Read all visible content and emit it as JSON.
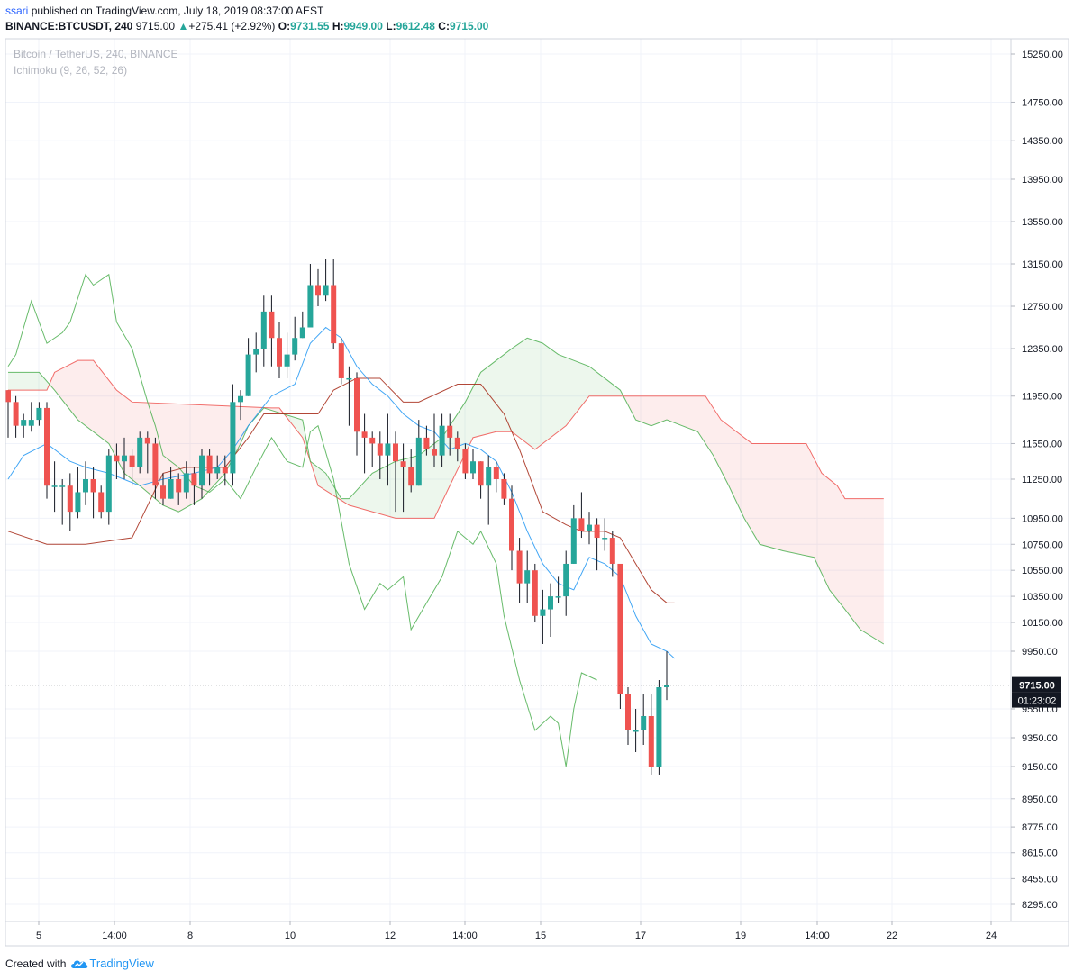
{
  "header": {
    "user": "ssari",
    "published_text": "published on TradingView.com, July 18, 2019 08:37:00 AEST",
    "symbol": "BINANCE:BTCUSDT, 240",
    "last": "9715.00",
    "change": "+275.41 (+2.92%)",
    "o_label": "O:",
    "o_value": "9731.55",
    "h_label": "H:",
    "h_value": "9949.00",
    "l_label": "L:",
    "l_value": "9612.48",
    "c_label": "C:",
    "c_value": "9715.00"
  },
  "legend": {
    "symbol_desc": "Bitcoin / TetherUS, 240, BINANCE",
    "indicator": "Ichimoku (9, 26, 52, 26)"
  },
  "footer": {
    "created_with": "Created with",
    "brand": "TradingView"
  },
  "price_badge": "9715.00",
  "countdown_badge": "01:23:02",
  "colors": {
    "up": "#26a69a",
    "down": "#ef5350",
    "conversion": "#2196f3",
    "base": "#a52714",
    "lagging": "#4caf50",
    "cloud_bull": "#4caf50",
    "cloud_bear": "#ef5350"
  },
  "chart_data": {
    "type": "candlestick",
    "yticks": [
      15250,
      14750,
      14350,
      13950,
      13550,
      13150,
      12750,
      12350,
      11950,
      11550,
      11250,
      10950,
      10750,
      10550,
      10350,
      10150,
      9950,
      9550,
      9350,
      9150,
      8950,
      8775,
      8615,
      8455,
      8295
    ],
    "yticks_hidden_under_badge": [
      9715
    ],
    "xticks": [
      "5",
      "14:00",
      "8",
      "10",
      "12",
      "14:00",
      "15",
      "17",
      "19",
      "14:00",
      "22",
      "24"
    ],
    "last_price": 9715,
    "candles": [
      [
        12000,
        11900,
        12000,
        11600
      ],
      [
        11900,
        11700,
        11950,
        11600
      ],
      [
        11700,
        11750,
        11800,
        11600
      ],
      [
        11700,
        11750,
        11900,
        11650
      ],
      [
        11750,
        11850,
        11900,
        11700
      ],
      [
        11850,
        11200,
        11900,
        11100
      ],
      [
        11200,
        11200,
        11400,
        11000
      ],
      [
        11200,
        11200,
        11250,
        10900
      ],
      [
        11200,
        11000,
        11300,
        10850
      ],
      [
        11000,
        11150,
        11350,
        10950
      ],
      [
        11150,
        11250,
        11400,
        11050
      ],
      [
        11250,
        11150,
        11350,
        10950
      ],
      [
        11150,
        11000,
        11200,
        10950
      ],
      [
        11000,
        11450,
        11500,
        10900
      ],
      [
        11450,
        11400,
        11550,
        11250
      ],
      [
        11400,
        11450,
        11600,
        11250
      ],
      [
        11450,
        11350,
        11500,
        11200
      ],
      [
        11350,
        11600,
        11650,
        11300
      ],
      [
        11600,
        11550,
        11650,
        11300
      ],
      [
        11550,
        11200,
        11600,
        11100
      ],
      [
        11200,
        11100,
        11300,
        11050
      ],
      [
        11100,
        11250,
        11350,
        11100
      ],
      [
        11250,
        11150,
        11300,
        11050
      ],
      [
        11150,
        11300,
        11400,
        11100
      ],
      [
        11300,
        11200,
        11350,
        11050
      ],
      [
        11200,
        11450,
        11500,
        11100
      ],
      [
        11450,
        11300,
        11500,
        11200
      ],
      [
        11300,
        11350,
        11450,
        11250
      ],
      [
        11350,
        11300,
        11450,
        11200
      ],
      [
        11300,
        11900,
        12050,
        11200
      ],
      [
        11900,
        11950,
        12000,
        11750
      ],
      [
        11950,
        12300,
        12450,
        11950
      ],
      [
        12300,
        12350,
        12500,
        12150
      ],
      [
        12350,
        12700,
        12850,
        12200
      ],
      [
        12700,
        12450,
        12850,
        12200
      ],
      [
        12450,
        12200,
        12600,
        12100
      ],
      [
        12200,
        12300,
        12500,
        12100
      ],
      [
        12300,
        12450,
        12650,
        12250
      ],
      [
        12450,
        12550,
        12700,
        12450
      ],
      [
        12550,
        12950,
        13150,
        12550
      ],
      [
        12950,
        12850,
        13100,
        12750
      ],
      [
        12850,
        12950,
        13200,
        12800
      ],
      [
        12950,
        12400,
        13200,
        12350
      ],
      [
        12400,
        12100,
        12450,
        12050
      ],
      [
        12100,
        12100,
        12200,
        11700
      ],
      [
        12100,
        11650,
        12150,
        11450
      ],
      [
        11650,
        11600,
        11800,
        11300
      ],
      [
        11600,
        11550,
        11650,
        11350
      ],
      [
        11550,
        11450,
        11650,
        11250
      ],
      [
        11450,
        11550,
        11800,
        11200
      ],
      [
        11550,
        11400,
        11650,
        11000
      ],
      [
        11400,
        11350,
        11550,
        11000
      ],
      [
        11350,
        11200,
        11500,
        11150
      ],
      [
        11200,
        11600,
        11750,
        11200
      ],
      [
        11600,
        11500,
        11700,
        11450
      ],
      [
        11500,
        11450,
        11800,
        11350
      ],
      [
        11450,
        11700,
        11800,
        11350
      ],
      [
        11700,
        11600,
        11800,
        11450
      ],
      [
        11600,
        11500,
        11650,
        11400
      ],
      [
        11500,
        11300,
        11550,
        11250
      ],
      [
        11300,
        11400,
        11500,
        11250
      ],
      [
        11400,
        11200,
        11400,
        11100
      ],
      [
        11200,
        11350,
        11450,
        10900
      ],
      [
        11350,
        11250,
        11400,
        11150
      ],
      [
        11250,
        11100,
        11300,
        11050
      ],
      [
        11100,
        10700,
        11200,
        10550
      ],
      [
        10700,
        10450,
        10800,
        10300
      ],
      [
        10450,
        10550,
        10700,
        10300
      ],
      [
        10550,
        10200,
        10600,
        10150
      ],
      [
        10200,
        10250,
        10400,
        10000
      ],
      [
        10250,
        10350,
        10450,
        10050
      ],
      [
        10350,
        10350,
        10500,
        10300
      ],
      [
        10350,
        10600,
        10700,
        10200
      ],
      [
        10600,
        10950,
        11050,
        10600
      ],
      [
        10950,
        10850,
        11150,
        10800
      ],
      [
        10850,
        10900,
        11000,
        10750
      ],
      [
        10900,
        10800,
        10950,
        10550
      ],
      [
        10800,
        10800,
        10950,
        10700
      ],
      [
        10800,
        10600,
        10850,
        10500
      ],
      [
        10600,
        9650,
        10600,
        9550
      ],
      [
        9650,
        9400,
        9700,
        9300
      ],
      [
        9400,
        9400,
        9550,
        9250
      ],
      [
        9400,
        9500,
        9650,
        9300
      ],
      [
        9500,
        9150,
        9650,
        9100
      ],
      [
        9150,
        9700,
        9750,
        9100
      ],
      [
        9700,
        9715,
        9949,
        9612
      ]
    ],
    "conversion_line": [
      [
        0,
        11250
      ],
      [
        2,
        11450
      ],
      [
        5,
        11550
      ],
      [
        8,
        11400
      ],
      [
        10,
        11350
      ],
      [
        13,
        11300
      ],
      [
        17,
        11200
      ],
      [
        20,
        11250
      ],
      [
        24,
        11300
      ],
      [
        27,
        11350
      ],
      [
        29,
        11500
      ],
      [
        31,
        11700
      ],
      [
        34,
        11950
      ],
      [
        37,
        12050
      ],
      [
        39,
        12400
      ],
      [
        41,
        12550
      ],
      [
        43,
        12450
      ],
      [
        45,
        12200
      ],
      [
        47,
        12050
      ],
      [
        49,
        11950
      ],
      [
        51,
        11800
      ],
      [
        53,
        11700
      ],
      [
        55,
        11650
      ],
      [
        57,
        11500
      ],
      [
        59,
        11550
      ],
      [
        61,
        11500
      ],
      [
        63,
        11400
      ],
      [
        65,
        11150
      ],
      [
        67,
        10850
      ],
      [
        69,
        10600
      ],
      [
        71,
        10450
      ],
      [
        73,
        10400
      ],
      [
        75,
        10650
      ],
      [
        77,
        10600
      ],
      [
        79,
        10500
      ],
      [
        81,
        10200
      ],
      [
        83,
        10000
      ],
      [
        85,
        9950
      ],
      [
        86,
        9900
      ]
    ],
    "base_line": [
      [
        0,
        10850
      ],
      [
        5,
        10750
      ],
      [
        10,
        10750
      ],
      [
        16,
        10800
      ],
      [
        20,
        11300
      ],
      [
        23,
        11350
      ],
      [
        28,
        11350
      ],
      [
        31,
        11600
      ],
      [
        33,
        11800
      ],
      [
        40,
        11800
      ],
      [
        42,
        12000
      ],
      [
        45,
        12100
      ],
      [
        48,
        12100
      ],
      [
        51,
        11900
      ],
      [
        53,
        11900
      ],
      [
        58,
        12050
      ],
      [
        61,
        12050
      ],
      [
        64,
        11800
      ],
      [
        66,
        11500
      ],
      [
        69,
        11000
      ],
      [
        72,
        10900
      ],
      [
        74,
        10850
      ],
      [
        77,
        10850
      ],
      [
        79,
        10800
      ],
      [
        81,
        10600
      ],
      [
        83,
        10400
      ],
      [
        85,
        10300
      ],
      [
        86,
        10300
      ]
    ],
    "span_a": [
      [
        0,
        12150
      ],
      [
        4,
        12150
      ],
      [
        6,
        12000
      ],
      [
        9,
        11750
      ],
      [
        13,
        11550
      ],
      [
        15,
        11300
      ],
      [
        17,
        11200
      ],
      [
        20,
        11050
      ],
      [
        22,
        11000
      ],
      [
        25,
        11100
      ],
      [
        28,
        11300
      ],
      [
        30,
        11550
      ],
      [
        31,
        11700
      ],
      [
        33,
        11850
      ],
      [
        38,
        11750
      ],
      [
        39,
        11400
      ],
      [
        41,
        11300
      ],
      [
        43,
        11100
      ],
      [
        44,
        11100
      ],
      [
        47,
        11300
      ],
      [
        50,
        11400
      ],
      [
        53,
        11450
      ],
      [
        56,
        11600
      ],
      [
        59,
        11900
      ],
      [
        61,
        12150
      ],
      [
        63,
        12250
      ],
      [
        65,
        12350
      ],
      [
        67,
        12450
      ],
      [
        69,
        12400
      ],
      [
        71,
        12300
      ],
      [
        73,
        12250
      ],
      [
        75,
        12200
      ],
      [
        77,
        12100
      ],
      [
        79,
        12000
      ],
      [
        81,
        11750
      ],
      [
        83,
        11700
      ],
      [
        85,
        11750
      ],
      [
        87,
        11700
      ],
      [
        89,
        11650
      ],
      [
        91,
        11450
      ],
      [
        93,
        11200
      ],
      [
        95,
        10950
      ],
      [
        97,
        10750
      ],
      [
        100,
        10700
      ],
      [
        104,
        10650
      ],
      [
        106,
        10400
      ],
      [
        108,
        10250
      ],
      [
        110,
        10100
      ],
      [
        113,
        10000
      ]
    ],
    "span_b": [
      [
        0,
        12000
      ],
      [
        5,
        12000
      ],
      [
        6,
        12150
      ],
      [
        9,
        12250
      ],
      [
        11,
        12250
      ],
      [
        14,
        12000
      ],
      [
        16,
        11900
      ],
      [
        34,
        11850
      ],
      [
        35,
        11850
      ],
      [
        38,
        11600
      ],
      [
        39,
        11400
      ],
      [
        40,
        11200
      ],
      [
        44,
        11050
      ],
      [
        50,
        10950
      ],
      [
        55,
        10950
      ],
      [
        57,
        11200
      ],
      [
        60,
        11600
      ],
      [
        63,
        11650
      ],
      [
        65,
        11650
      ],
      [
        68,
        11500
      ],
      [
        70,
        11600
      ],
      [
        72,
        11700
      ],
      [
        75,
        11950
      ],
      [
        78,
        11950
      ],
      [
        90,
        11950
      ],
      [
        92,
        11750
      ],
      [
        94,
        11650
      ],
      [
        96,
        11550
      ],
      [
        99,
        11550
      ],
      [
        103,
        11550
      ],
      [
        105,
        11300
      ],
      [
        107,
        11200
      ],
      [
        108,
        11100
      ],
      [
        113,
        11100
      ]
    ],
    "lagging_span": [
      [
        0,
        12200
      ],
      [
        1,
        12300
      ],
      [
        3,
        12800
      ],
      [
        5,
        12400
      ],
      [
        7,
        12500
      ],
      [
        8,
        12600
      ],
      [
        10,
        13050
      ],
      [
        11,
        12950
      ],
      [
        13,
        13050
      ],
      [
        14,
        12600
      ],
      [
        16,
        12350
      ],
      [
        18,
        11900
      ],
      [
        19,
        11700
      ],
      [
        20,
        11450
      ],
      [
        22,
        11350
      ],
      [
        24,
        11200
      ],
      [
        26,
        11150
      ],
      [
        28,
        11250
      ],
      [
        30,
        11100
      ],
      [
        32,
        11350
      ],
      [
        34,
        11600
      ],
      [
        36,
        11400
      ],
      [
        38,
        11350
      ],
      [
        39,
        11650
      ],
      [
        40,
        11700
      ],
      [
        42,
        11250
      ],
      [
        44,
        10600
      ],
      [
        46,
        10250
      ],
      [
        48,
        10450
      ],
      [
        49,
        10400
      ],
      [
        51,
        10500
      ],
      [
        52,
        10100
      ],
      [
        54,
        10300
      ],
      [
        56,
        10500
      ],
      [
        58,
        10850
      ],
      [
        60,
        10750
      ],
      [
        61,
        10850
      ],
      [
        63,
        10600
      ],
      [
        64,
        10200
      ],
      [
        66,
        9750
      ],
      [
        68,
        9400
      ],
      [
        70,
        9500
      ],
      [
        71,
        9450
      ],
      [
        72,
        9150
      ],
      [
        73,
        9550
      ],
      [
        74,
        9800
      ],
      [
        76,
        9750
      ]
    ]
  }
}
